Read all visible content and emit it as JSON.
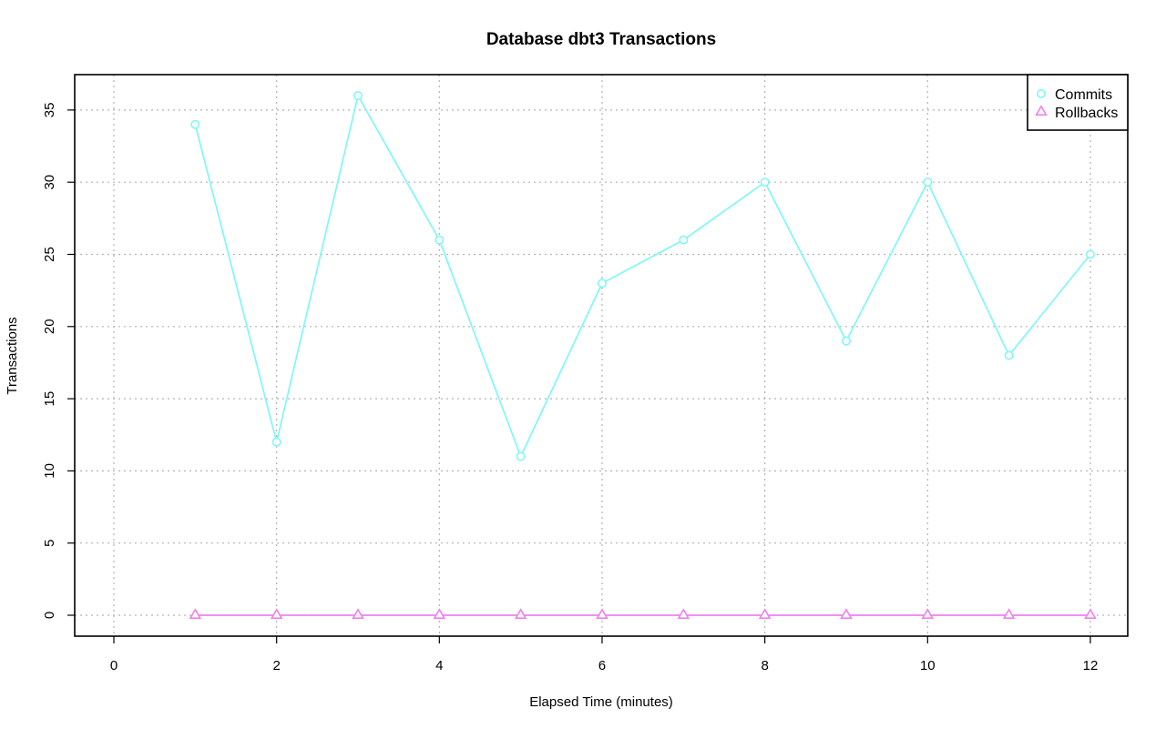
{
  "chart_data": {
    "type": "line",
    "title": "Database dbt3 Transactions",
    "xlabel": "Elapsed Time (minutes)",
    "ylabel": "Transactions",
    "xlim": [
      0,
      12
    ],
    "ylim": [
      0,
      35
    ],
    "x_ticks": [
      0,
      2,
      4,
      6,
      8,
      10,
      12
    ],
    "y_ticks": [
      0,
      5,
      10,
      15,
      20,
      25,
      30,
      35
    ],
    "x_tick_labels": [
      "0",
      "2",
      "4",
      "6",
      "8",
      "10",
      "12"
    ],
    "y_tick_labels": [
      "0",
      "5",
      "10",
      "15",
      "20",
      "25",
      "30",
      "35"
    ],
    "grid": true,
    "legend_position": "top-right",
    "x": [
      1,
      2,
      3,
      4,
      5,
      6,
      7,
      8,
      9,
      10,
      11,
      12
    ],
    "series": [
      {
        "name": "Commits",
        "marker": "circle",
        "color": "#7ff7f7",
        "values": [
          34,
          12,
          36,
          26,
          11,
          23,
          26,
          30,
          19,
          30,
          18,
          25
        ]
      },
      {
        "name": "Rollbacks",
        "marker": "triangle",
        "color": "#ee82ee",
        "values": [
          0,
          0,
          0,
          0,
          0,
          0,
          0,
          0,
          0,
          0,
          0,
          0
        ]
      }
    ]
  }
}
